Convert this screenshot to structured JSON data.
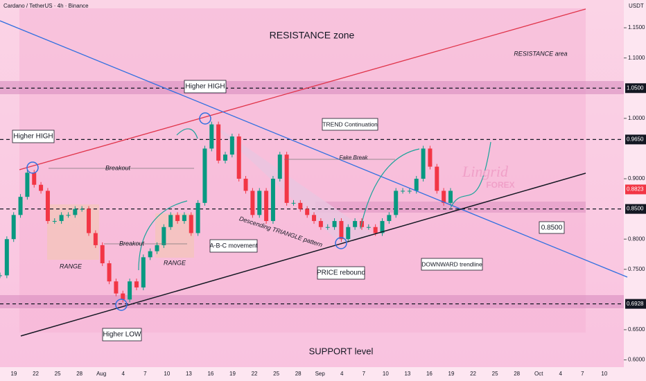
{
  "chart_data": {
    "type": "candlestick",
    "title": "Cardano / TetherUS · 4h · Binance",
    "currency": "USDT",
    "ylim": [
      0.588,
      1.196
    ],
    "yticks": [
      {
        "value": 1.15,
        "label": "1.1500"
      },
      {
        "value": 1.1,
        "label": "1.1000"
      },
      {
        "value": 1.0,
        "label": "1.0000"
      },
      {
        "value": 0.9,
        "label": "0.9000"
      },
      {
        "value": 0.8,
        "label": "0.8000"
      },
      {
        "value": 0.75,
        "label": "0.7500"
      },
      {
        "value": 0.65,
        "label": "0.6500"
      },
      {
        "value": 0.6,
        "label": "0.6000"
      }
    ],
    "levels": [
      {
        "value": 1.05,
        "label": "1.0500",
        "color": "#131722"
      },
      {
        "value": 0.965,
        "label": "0.9650",
        "color": "#131722"
      },
      {
        "value": 0.85,
        "label": "0.8500",
        "color": "#131722"
      },
      {
        "value": 0.6928,
        "label": "0.6928",
        "color": "#131722"
      },
      {
        "value": 0.8823,
        "label": "0.8823",
        "color": "#f23645"
      }
    ],
    "categories": [
      "19",
      "22",
      "25",
      "28",
      "Aug",
      "4",
      "7",
      "10",
      "13",
      "16",
      "19",
      "22",
      "25",
      "28",
      "Sep",
      "4",
      "7",
      "10",
      "13",
      "16",
      "19",
      "22",
      "25",
      "28",
      "Oct",
      "4",
      "7",
      "10"
    ],
    "price": {
      "up_color": "#089981",
      "down_color": "#f23645",
      "values": [
        0.74,
        0.8,
        0.84,
        0.87,
        0.91,
        0.89,
        0.88,
        0.83,
        0.83,
        0.84,
        0.84,
        0.85,
        0.85,
        0.81,
        0.79,
        0.76,
        0.73,
        0.71,
        0.7,
        0.73,
        0.72,
        0.77,
        0.78,
        0.79,
        0.82,
        0.84,
        0.83,
        0.84,
        0.81,
        0.86,
        0.95,
        0.99,
        0.93,
        0.94,
        0.97,
        0.9,
        0.88,
        0.84,
        0.88,
        0.83,
        0.9,
        0.94,
        0.86,
        0.86,
        0.85,
        0.84,
        0.83,
        0.82,
        0.82,
        0.83,
        0.8,
        0.82,
        0.83,
        0.82,
        0.82,
        0.81,
        0.83,
        0.84,
        0.88,
        0.88,
        0.88,
        0.9,
        0.95,
        0.92,
        0.88,
        0.86,
        0.88
      ]
    },
    "annotations": [
      "RESISTANCE zone",
      "RESISTANCE area",
      "Higher HIGH",
      "Higher HIGH",
      "Breakout",
      "Breakout",
      "RANGE",
      "RANGE",
      "Higher LOW",
      "A-B-C movement",
      "Descending TRIANGLE pattern",
      "PRICE rebound",
      "TREND Continuation",
      "Fake Break",
      "DOWNWARD trendline",
      "SUPPORT level",
      "0.8500",
      "Lingrid",
      "FOREX"
    ]
  }
}
